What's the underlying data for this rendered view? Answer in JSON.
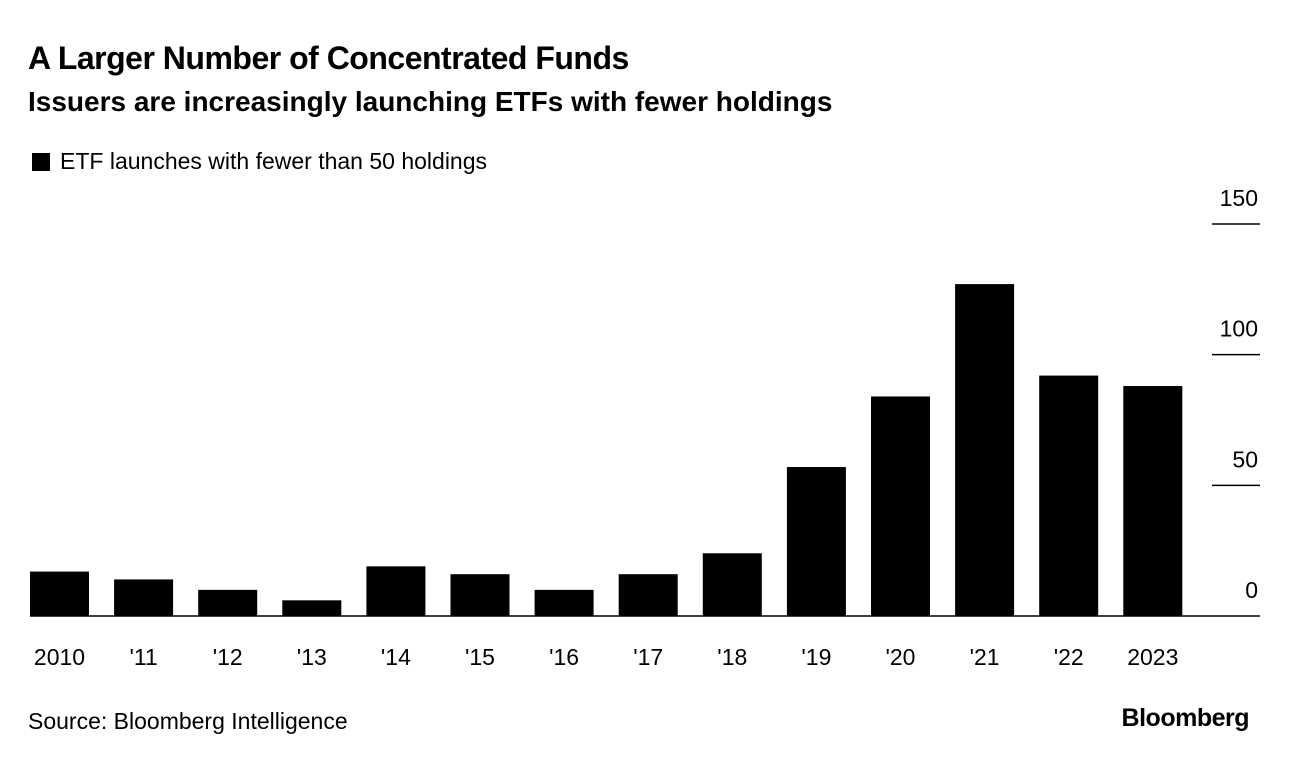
{
  "chart_data": {
    "type": "bar",
    "title": "A Larger Number of Concentrated Funds",
    "subtitle": "Issuers are increasingly launching ETFs with fewer holdings",
    "categories": [
      "2010",
      "'11",
      "'12",
      "'13",
      "'14",
      "'15",
      "'16",
      "'17",
      "'18",
      "'19",
      "'20",
      "'21",
      "'22",
      "2023"
    ],
    "series": [
      {
        "name": "ETF launches with fewer than 50 holdings",
        "values": [
          17,
          14,
          10,
          6,
          19,
          16,
          10,
          16,
          24,
          57,
          84,
          127,
          92,
          88
        ],
        "color": "#000000"
      }
    ],
    "yticks": [
      "0",
      "50",
      "100",
      "150"
    ],
    "ylim": [
      0,
      150
    ],
    "xlabel": "",
    "ylabel": "",
    "grid": false,
    "legend_position": "top-left",
    "y_axis_side": "right"
  },
  "footer": {
    "source": "Source: Bloomberg Intelligence",
    "brand": "Bloomberg"
  }
}
